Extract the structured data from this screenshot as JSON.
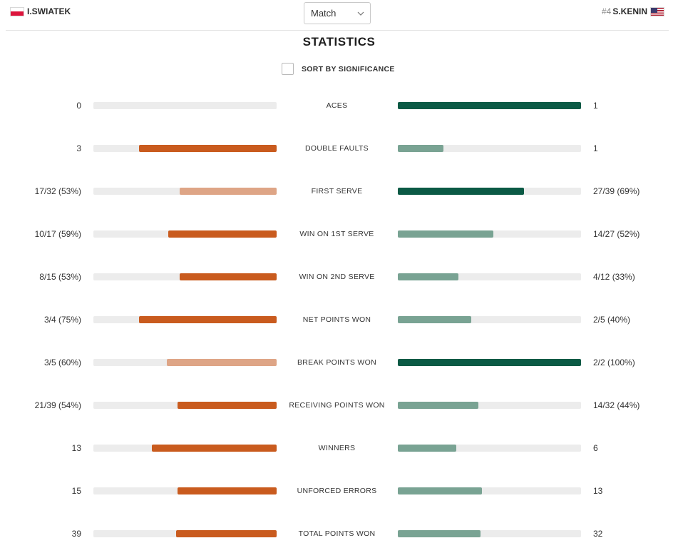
{
  "header": {
    "left_player": {
      "name": "I.SWIATEK",
      "flag": "poland-flag-icon"
    },
    "right_player": {
      "seed": "#4",
      "name": "S.KENIN",
      "flag": "usa-flag-icon"
    },
    "period_select": {
      "value": "Match",
      "icon": "chevron-down-icon"
    }
  },
  "title": "STATISTICS",
  "sort": {
    "label": "SORT BY SIGNIFICANCE",
    "checked": false
  },
  "colors": {
    "left_strong": "#c95b1e",
    "left_light": "#dea586",
    "right_strong": "#0b5a45",
    "right_light": "#79a393",
    "track": "#ececec"
  },
  "stats": [
    {
      "label": "ACES",
      "left": "0",
      "right": "1",
      "left_pct": 0,
      "right_pct": 100,
      "winner": "right"
    },
    {
      "label": "DOUBLE FAULTS",
      "left": "3",
      "right": "1",
      "left_pct": 75,
      "right_pct": 25,
      "winner": "left"
    },
    {
      "label": "FIRST SERVE",
      "left": "17/32 (53%)",
      "right": "27/39 (69%)",
      "left_pct": 53,
      "right_pct": 69,
      "winner": "right"
    },
    {
      "label": "WIN ON 1ST SERVE",
      "left": "10/17 (59%)",
      "right": "14/27 (52%)",
      "left_pct": 59,
      "right_pct": 52,
      "winner": "left"
    },
    {
      "label": "WIN ON 2ND SERVE",
      "left": "8/15 (53%)",
      "right": "4/12 (33%)",
      "left_pct": 53,
      "right_pct": 33,
      "winner": "left"
    },
    {
      "label": "NET POINTS WON",
      "left": "3/4 (75%)",
      "right": "2/5 (40%)",
      "left_pct": 75,
      "right_pct": 40,
      "winner": "left"
    },
    {
      "label": "BREAK POINTS WON",
      "left": "3/5 (60%)",
      "right": "2/2 (100%)",
      "left_pct": 60,
      "right_pct": 100,
      "winner": "right"
    },
    {
      "label": "RECEIVING POINTS WON",
      "left": "21/39 (54%)",
      "right": "14/32 (44%)",
      "left_pct": 54,
      "right_pct": 44,
      "winner": "left"
    },
    {
      "label": "WINNERS",
      "left": "13",
      "right": "6",
      "left_pct": 68,
      "right_pct": 32,
      "winner": "left"
    },
    {
      "label": "UNFORCED ERRORS",
      "left": "15",
      "right": "13",
      "left_pct": 54,
      "right_pct": 46,
      "winner": "left"
    },
    {
      "label": "TOTAL POINTS WON",
      "left": "39",
      "right": "32",
      "left_pct": 55,
      "right_pct": 45,
      "winner": "left"
    }
  ]
}
